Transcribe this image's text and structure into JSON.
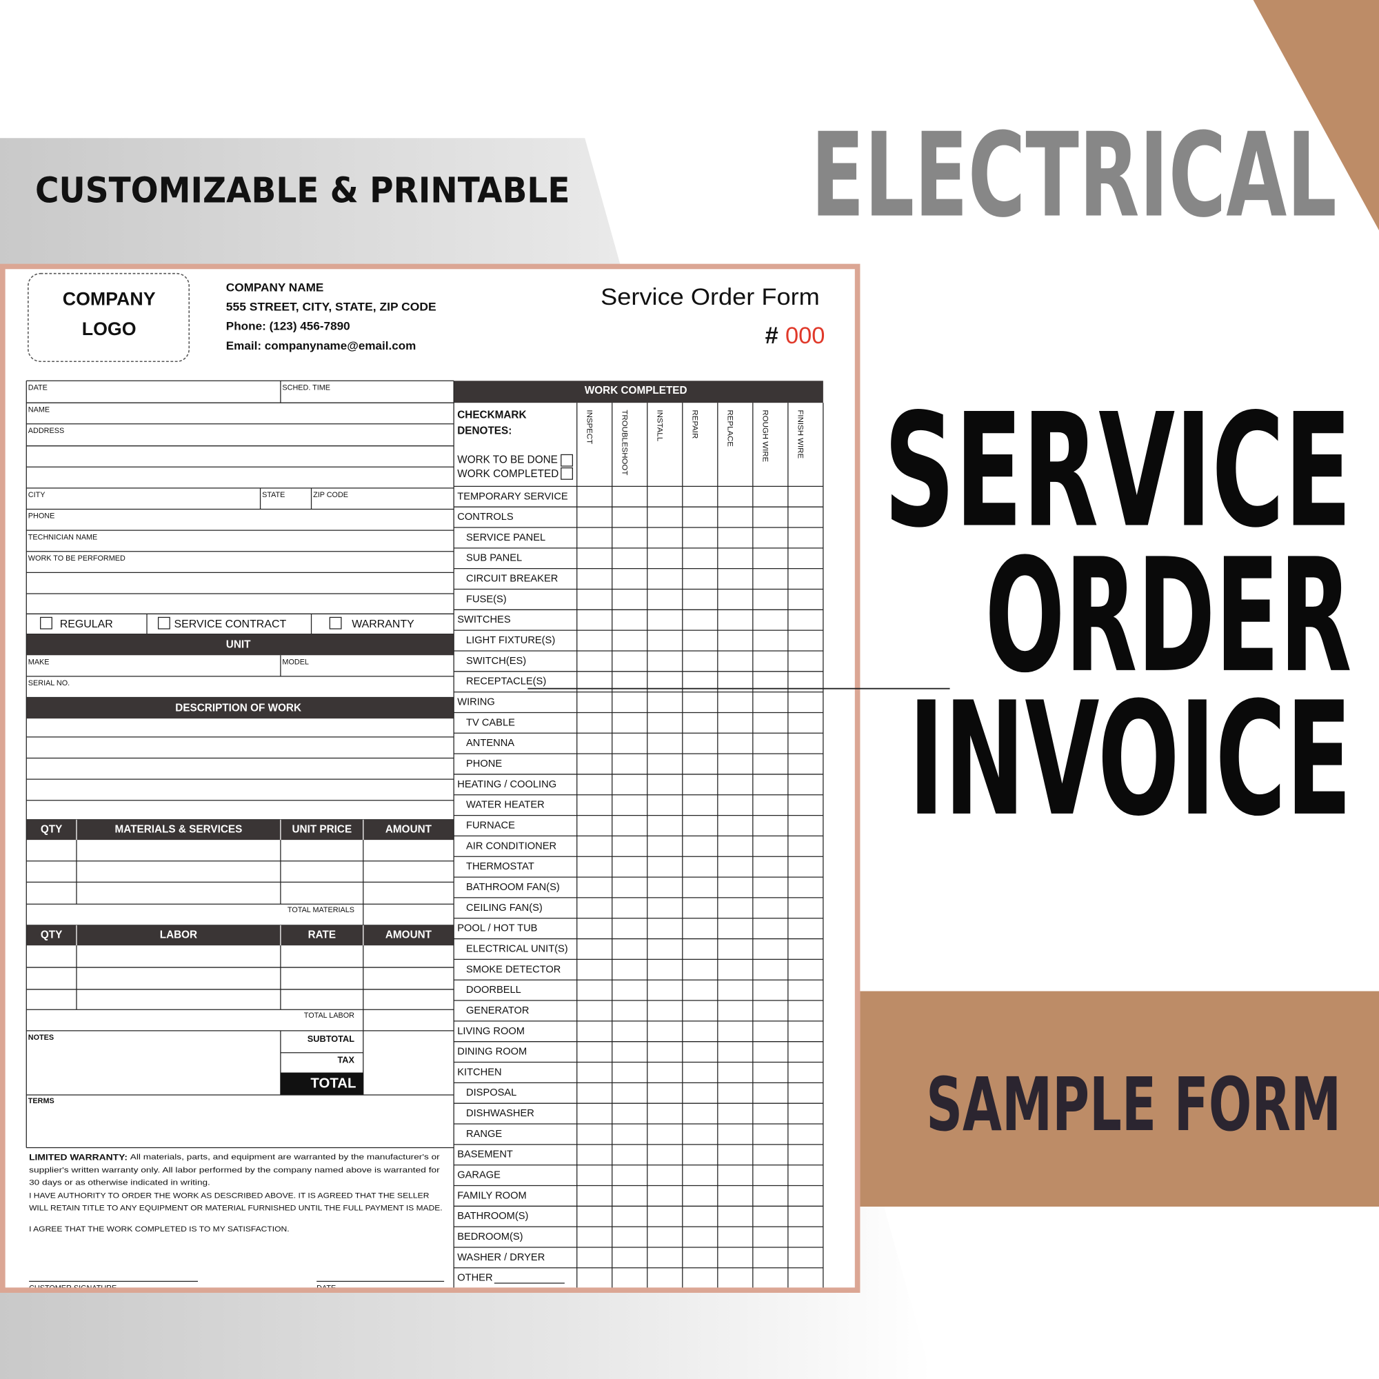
{
  "banner": {
    "tagline": "CUSTOMIZABLE & PRINTABLE",
    "category": "ELECTRICAL",
    "title_lines": [
      "SERVICE",
      "ORDER",
      "INVOICE"
    ],
    "badge": "SAMPLE FORM"
  },
  "form": {
    "logo": [
      "COMPANY",
      "LOGO"
    ],
    "company": {
      "name": "COMPANY NAME",
      "address": "555 STREET, CITY, STATE, ZIP CODE",
      "phone": "Phone: (123) 456-7890",
      "email": "Email: companyname@email.com"
    },
    "title": "Service Order Form",
    "number_prefix": "#",
    "number": "000",
    "fields": {
      "date": "DATE",
      "sched_time": "SCHED. TIME",
      "name": "NAME",
      "address": "ADDRESS",
      "city": "CITY",
      "state": "STATE",
      "zip": "ZIP CODE",
      "phone": "PHONE",
      "technician": "TECHNICIAN NAME",
      "work_to_be_performed": "WORK TO BE PERFORMED"
    },
    "service_types": [
      "REGULAR",
      "SERVICE CONTRACT",
      "WARRANTY"
    ],
    "unit": {
      "title": "UNIT",
      "make": "MAKE",
      "model": "MODEL",
      "serial": "SERIAL NO."
    },
    "description_title": "DESCRIPTION OF WORK",
    "materials": {
      "headers": [
        "QTY",
        "MATERIALS & SERVICES",
        "UNIT PRICE",
        "AMOUNT"
      ],
      "total": "TOTAL MATERIALS"
    },
    "labor": {
      "headers": [
        "QTY",
        "LABOR",
        "RATE",
        "AMOUNT"
      ],
      "total": "TOTAL LABOR"
    },
    "totals": {
      "notes": "NOTES",
      "subtotal": "SUBTOTAL",
      "tax": "TAX",
      "total": "TOTAL"
    },
    "terms": "TERMS",
    "warranty": {
      "lead": "LIMITED WARRANTY:",
      "lines": [
        "All materials, parts, and equipment are warranted by the manufacturer's or",
        "supplier's written warranty only. All labor performed by the company named above is warranted for",
        "30 days or as otherwise indicated in writing."
      ]
    },
    "authority": [
      "I HAVE AUTHORITY TO ORDER THE WORK AS DESCRIBED ABOVE. IT IS AGREED THAT THE SELLER",
      "WILL RETAIN TITLE TO ANY EQUIPMENT OR MATERIAL FURNISHED UNTIL THE FULL PAYMENT IS MADE."
    ],
    "agreement": "I AGREE THAT THE WORK COMPLETED IS TO MY SATISFACTION.",
    "signature": {
      "customer": "CUSTOMER SIGNATURE",
      "date": "DATE"
    },
    "work_completed": {
      "title": "WORK COMPLETED",
      "checkmark": [
        "CHECKMARK",
        "DENOTES:"
      ],
      "legend": [
        "WORK TO BE DONE",
        "WORK COMPLETED"
      ],
      "columns": [
        "INSPECT",
        "TROUBLESHOOT",
        "INSTALL",
        "REPAIR",
        "REPLACE",
        "ROUGH WIRE",
        "FINISH WIRE"
      ],
      "groups": [
        {
          "label": "TEMPORARY SERVICE",
          "items": []
        },
        {
          "label": "CONTROLS",
          "items": [
            "SERVICE PANEL",
            "SUB PANEL",
            "CIRCUIT BREAKER",
            "FUSE(S)"
          ]
        },
        {
          "label": "SWITCHES",
          "items": [
            "LIGHT FIXTURE(S)",
            "SWITCH(ES)",
            "RECEPTACLE(S)"
          ]
        },
        {
          "label": "WIRING",
          "items": [
            "TV CABLE",
            "ANTENNA",
            "PHONE"
          ]
        },
        {
          "label": "HEATING / COOLING",
          "items": [
            "WATER HEATER",
            "FURNACE",
            "AIR CONDITIONER",
            "THERMOSTAT",
            "BATHROOM FAN(S)",
            "CEILING FAN(S)"
          ]
        },
        {
          "label": "POOL / HOT TUB",
          "items": [
            "ELECTRICAL UNIT(S)",
            "SMOKE DETECTOR",
            "DOORBELL",
            "GENERATOR"
          ]
        },
        {
          "label": "LIVING ROOM",
          "items": []
        },
        {
          "label": "DINING ROOM",
          "items": []
        },
        {
          "label": "KITCHEN",
          "items": [
            "DISPOSAL",
            "DISHWASHER",
            "RANGE"
          ]
        },
        {
          "label": "BASEMENT",
          "items": []
        },
        {
          "label": "GARAGE",
          "items": []
        },
        {
          "label": "FAMILY ROOM",
          "items": []
        },
        {
          "label": "BATHROOM(S)",
          "items": []
        },
        {
          "label": "BEDROOM(S)",
          "items": []
        },
        {
          "label": "WASHER / DRYER",
          "items": []
        },
        {
          "label": "OTHER",
          "items": []
        }
      ]
    }
  }
}
